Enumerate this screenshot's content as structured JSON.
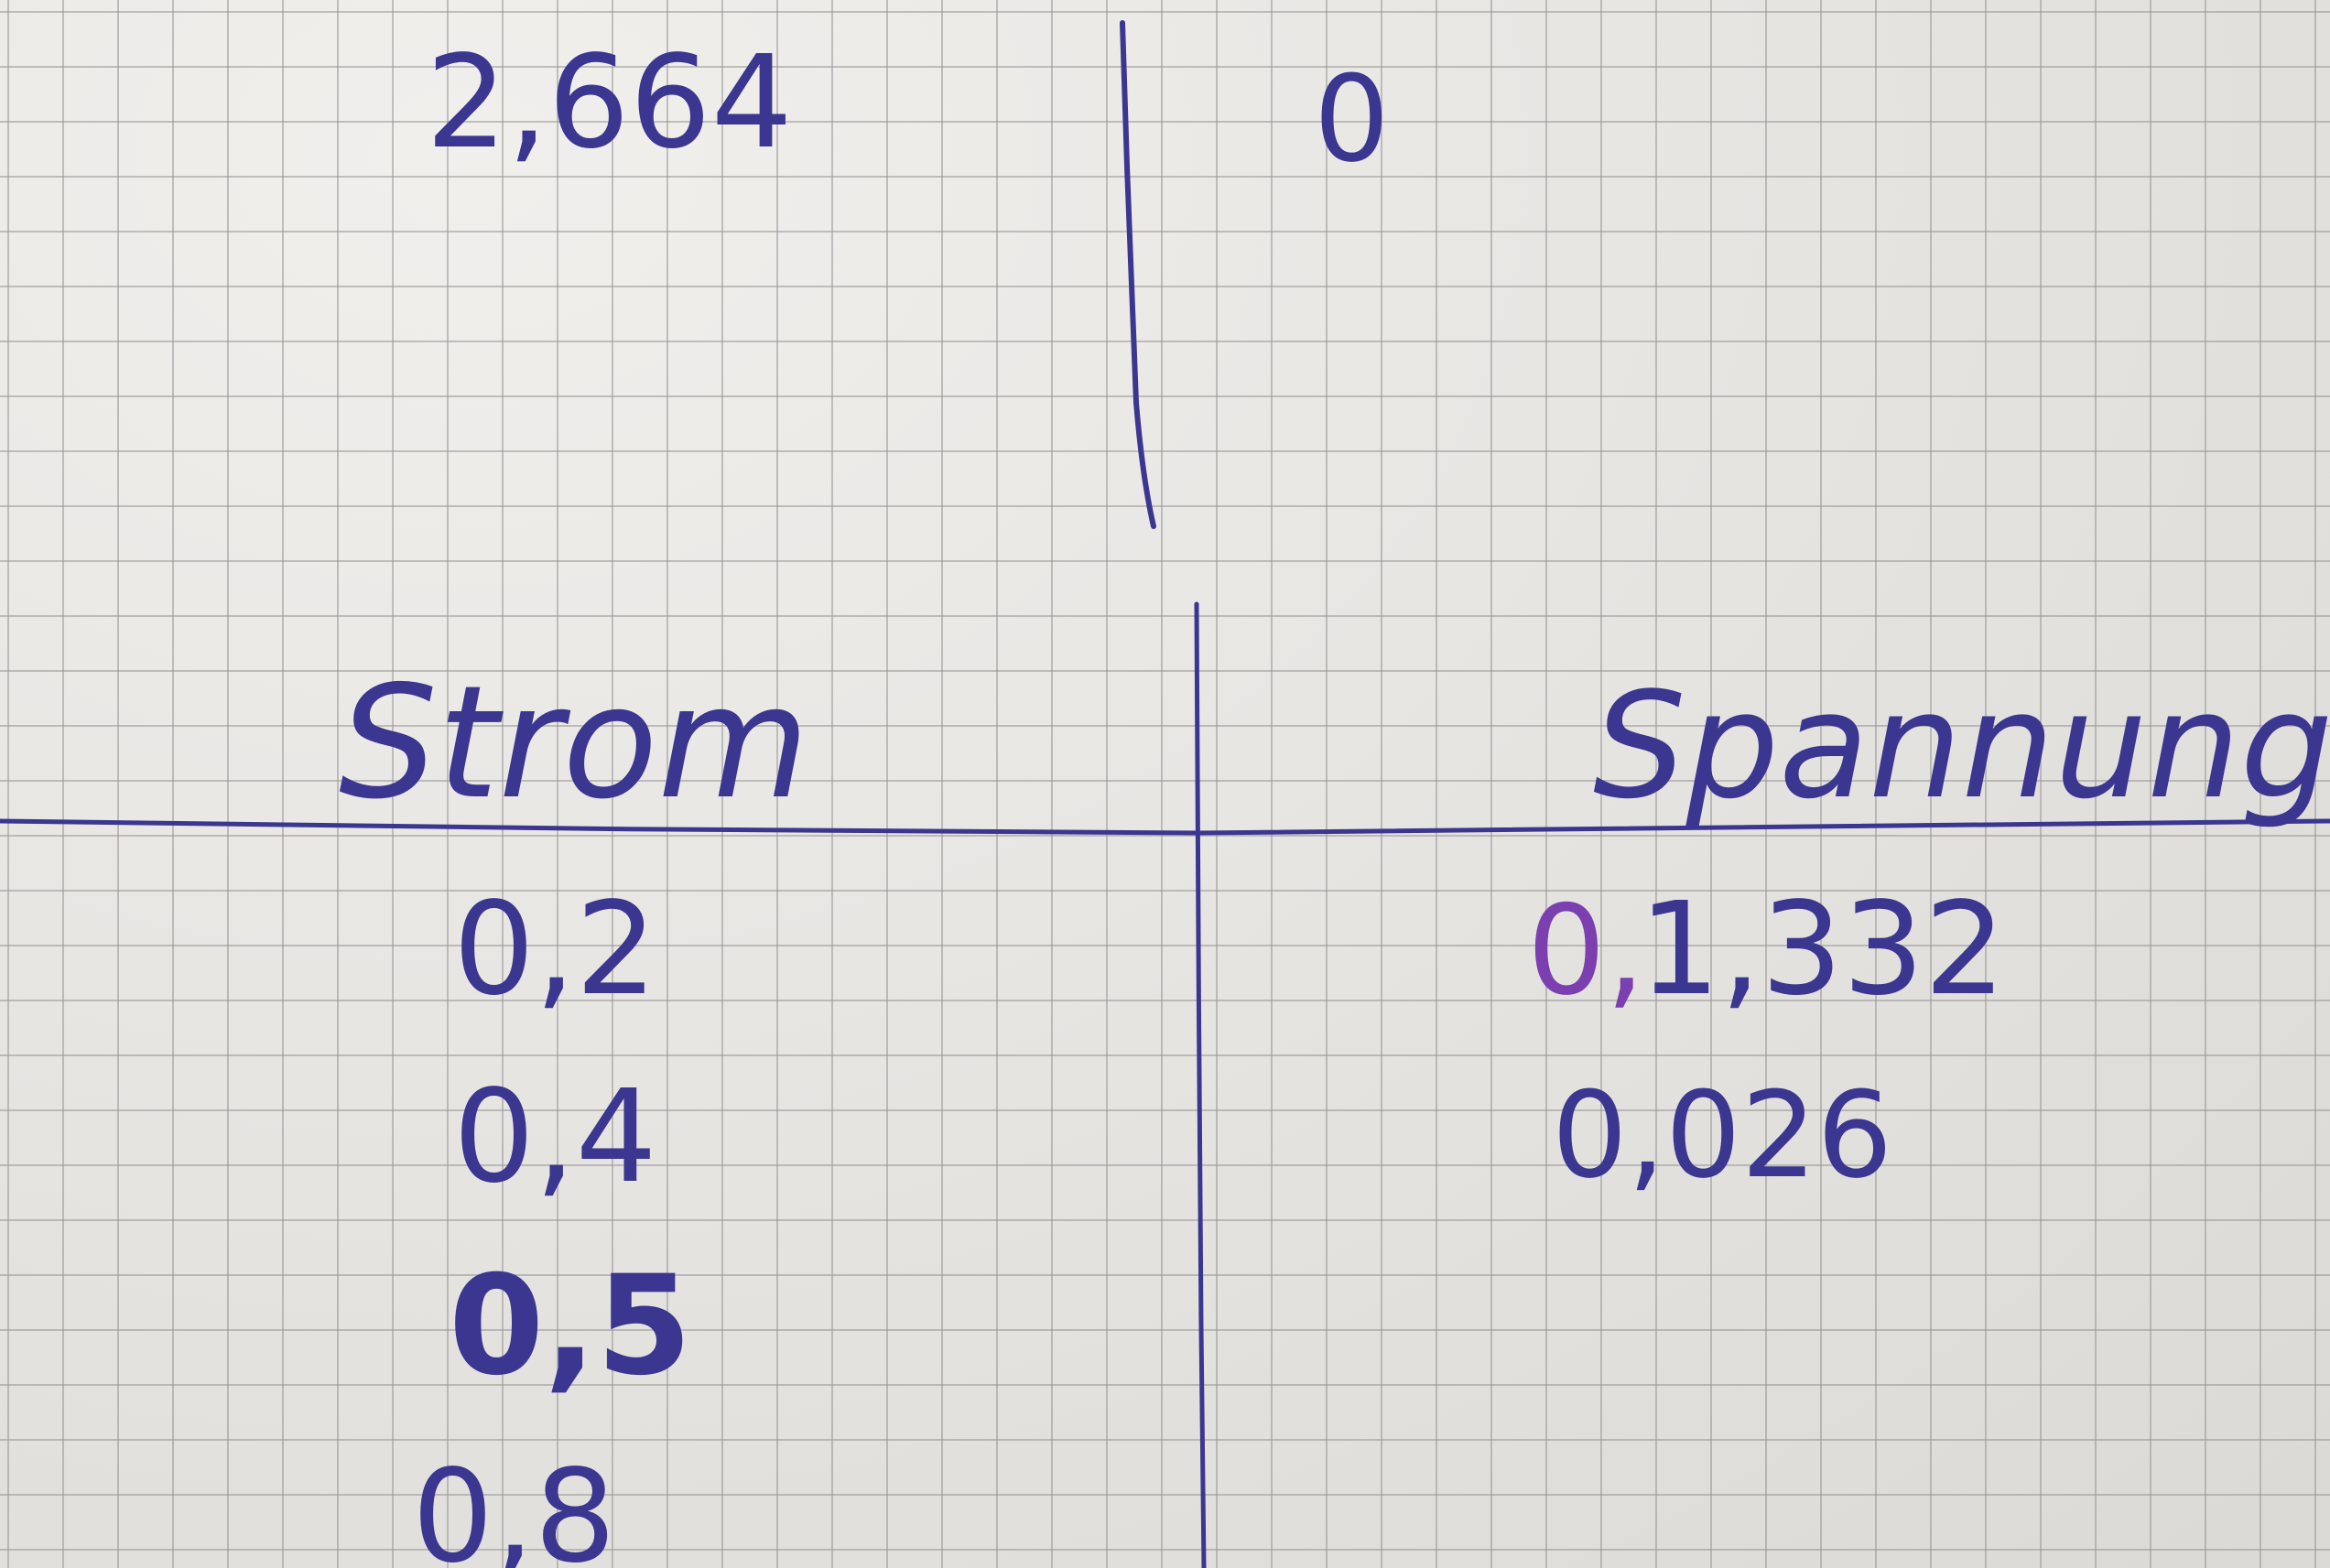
{
  "top_row": {
    "left_value": "2,664",
    "right_value": "0"
  },
  "table": {
    "headers": {
      "left": "Strom",
      "right": "Spannung"
    },
    "left_column": [
      "0,2",
      "0,4",
      "0,5",
      "0,8"
    ],
    "right_column": {
      "row1_prefix": "0,",
      "row1_value": "1,332",
      "row2_value": "0,026"
    }
  },
  "colors": {
    "ink": "#3b3690",
    "ink_purple": "#7c3fb0",
    "paper": "#e9e7e3",
    "grid": "#969696"
  }
}
